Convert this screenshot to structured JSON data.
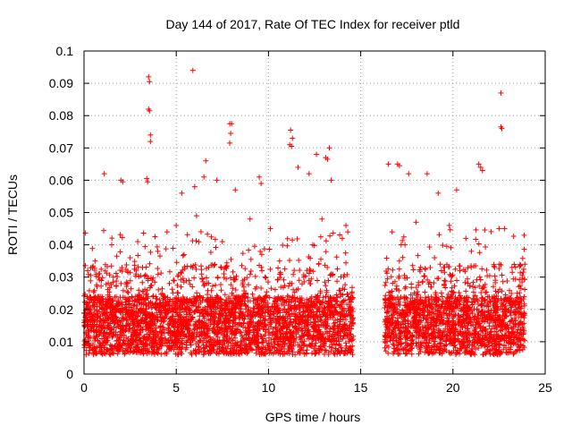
{
  "chart_data": {
    "type": "scatter",
    "title": "Day 144 of 2017, Rate Of TEC Index for receiver ptld",
    "xlabel": "GPS time / hours",
    "ylabel": "ROTI / TECUs",
    "xlim": [
      0,
      25
    ],
    "ylim": [
      0,
      0.1
    ],
    "xticks": [
      0,
      5,
      10,
      15,
      20,
      25
    ],
    "yticks": [
      0,
      0.01,
      0.02,
      0.03,
      0.04,
      0.05,
      0.06,
      0.07,
      0.08,
      0.09,
      0.1
    ],
    "xtick_labels": [
      "0",
      "5",
      "10",
      "15",
      "20",
      "25"
    ],
    "ytick_labels": [
      "0",
      "0.01",
      "0.02",
      "0.03",
      "0.04",
      "0.05",
      "0.06",
      "0.07",
      "0.08",
      "0.09",
      "0.1"
    ],
    "grid": "dotted",
    "legend": "none",
    "marker": "plus",
    "series": [
      {
        "color": "#ff0000",
        "data_gap_hours": [
          14.6,
          16.3
        ],
        "points": [
          [
            3.5,
            0.092
          ],
          [
            3.55,
            0.0905
          ],
          [
            3.5,
            0.082
          ],
          [
            3.55,
            0.0815
          ],
          [
            5.9,
            0.094
          ],
          [
            3.6,
            0.074
          ],
          [
            3.6,
            0.072
          ],
          [
            7.9,
            0.0775
          ],
          [
            8.0,
            0.0775
          ],
          [
            7.95,
            0.0745
          ],
          [
            7.9,
            0.0715
          ],
          [
            6.6,
            0.066
          ],
          [
            11.2,
            0.0755
          ],
          [
            11.3,
            0.073
          ],
          [
            11.25,
            0.0705
          ],
          [
            11.15,
            0.071
          ],
          [
            12.6,
            0.068
          ],
          [
            13.1,
            0.067
          ],
          [
            13.2,
            0.0665
          ],
          [
            13.3,
            0.07
          ],
          [
            22.6,
            0.087
          ],
          [
            22.6,
            0.0765
          ],
          [
            22.65,
            0.076
          ],
          [
            1.1,
            0.062
          ],
          [
            2.0,
            0.06
          ],
          [
            2.1,
            0.0595
          ],
          [
            3.4,
            0.0605
          ],
          [
            3.45,
            0.0595
          ],
          [
            5.3,
            0.056
          ],
          [
            6.0,
            0.058
          ],
          [
            6.5,
            0.061
          ],
          [
            7.2,
            0.06
          ],
          [
            8.2,
            0.057
          ],
          [
            9.5,
            0.061
          ],
          [
            9.6,
            0.059
          ],
          [
            11.6,
            0.064
          ],
          [
            12.2,
            0.062
          ],
          [
            13.4,
            0.06
          ],
          [
            16.5,
            0.065
          ],
          [
            17.0,
            0.065
          ],
          [
            17.1,
            0.0645
          ],
          [
            17.6,
            0.062
          ],
          [
            18.6,
            0.062
          ],
          [
            19.2,
            0.056
          ],
          [
            20.2,
            0.057
          ],
          [
            21.4,
            0.065
          ],
          [
            21.5,
            0.064
          ],
          [
            21.6,
            0.063
          ],
          [
            4.5,
            0.044
          ],
          [
            5.0,
            0.046
          ],
          [
            6.1,
            0.049
          ],
          [
            9.0,
            0.048
          ],
          [
            10.1,
            0.045
          ],
          [
            12.9,
            0.048
          ],
          [
            14.2,
            0.046
          ],
          [
            14.3,
            0.044
          ],
          [
            16.7,
            0.044
          ],
          [
            18.0,
            0.047
          ],
          [
            19.8,
            0.046
          ],
          [
            20.7,
            0.042
          ],
          [
            22.5,
            0.045
          ],
          [
            22.8,
            0.045
          ],
          [
            23.9,
            0.034
          ],
          [
            0.6,
            0.035
          ],
          [
            1.5,
            0.04
          ],
          [
            2.5,
            0.036
          ],
          [
            4.0,
            0.038
          ],
          [
            7.5,
            0.041
          ],
          [
            10.6,
            0.035
          ],
          [
            12.4,
            0.04
          ],
          [
            14.0,
            0.042
          ],
          [
            17.4,
            0.04
          ],
          [
            19.0,
            0.036
          ],
          [
            21.0,
            0.038
          ],
          [
            23.2,
            0.033
          ]
        ]
      }
    ]
  }
}
